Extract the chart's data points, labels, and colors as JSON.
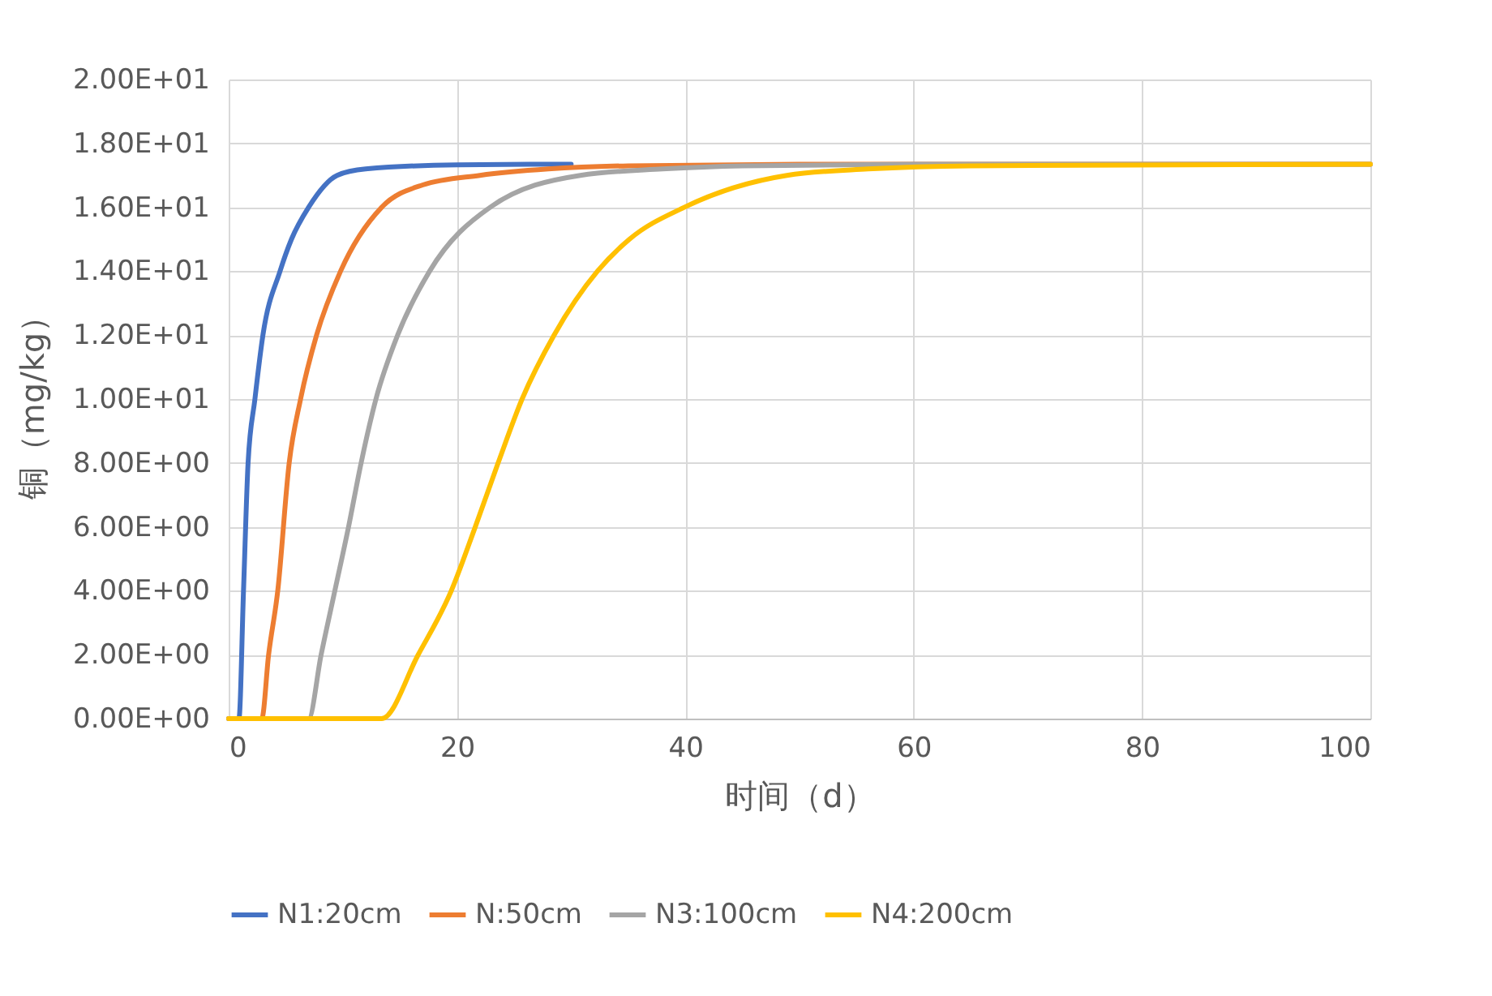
{
  "chart_data": {
    "type": "line",
    "xlabel": "时间（d）",
    "ylabel": "铜（mg/kg）",
    "xlim": [
      0,
      100
    ],
    "xticks": [
      0,
      20,
      40,
      60,
      80,
      100
    ],
    "ylim": [
      0,
      20
    ],
    "yticks": [
      {
        "value": 0,
        "label": "0.00E+00"
      },
      {
        "value": 2,
        "label": "2.00E+00"
      },
      {
        "value": 4,
        "label": "4.00E+00"
      },
      {
        "value": 6,
        "label": "6.00E+00"
      },
      {
        "value": 8,
        "label": "8.00E+00"
      },
      {
        "value": 10,
        "label": "1.00E+01"
      },
      {
        "value": 12,
        "label": "1.20E+01"
      },
      {
        "value": 14,
        "label": "1.40E+01"
      },
      {
        "value": 16,
        "label": "1.60E+01"
      },
      {
        "value": 18,
        "label": "1.80E+01"
      },
      {
        "value": 20,
        "label": "2.00E+01"
      }
    ],
    "grid": true,
    "legend": "bottom",
    "line_style": "solid",
    "series": [
      {
        "name": "N1:20cm",
        "color": "#4472c4",
        "x": [
          0,
          0.9,
          1.3,
          1.7,
          2.3,
          3,
          4.5,
          5.5,
          7,
          9.5,
          12,
          20,
          30
        ],
        "values": [
          0,
          0,
          4,
          8,
          10,
          12,
          14,
          15,
          16,
          17,
          17.2,
          17.33,
          17.35
        ]
      },
      {
        "name": "N:50cm",
        "color": "#ed7d31",
        "x": [
          0,
          2.9,
          3.5,
          4.3,
          5.3,
          6.3,
          7.7,
          9.8,
          13.4,
          17,
          22,
          28,
          35,
          50,
          100
        ],
        "values": [
          0,
          0,
          2,
          4,
          8,
          10,
          12,
          14,
          16,
          16.7,
          17,
          17.2,
          17.3,
          17.35,
          17.35
        ]
      },
      {
        "name": "N3:100cm",
        "color": "#a5a5a5",
        "x": [
          0,
          7,
          8.1,
          9.3,
          10.5,
          11.6,
          12.9,
          14.8,
          17.6,
          22.9,
          30.8,
          38,
          45,
          60,
          100
        ],
        "values": [
          0,
          0,
          2,
          4,
          6,
          8,
          10,
          12,
          14,
          16,
          17,
          17.2,
          17.3,
          17.35,
          17.35
        ]
      },
      {
        "name": "N4:200cm",
        "color": "#ffc000",
        "x": [
          0,
          13.4,
          16.6,
          19.5,
          21.6,
          23.6,
          25.7,
          28.5,
          32.3,
          35.1,
          39.9,
          48.9,
          56,
          65,
          100
        ],
        "values": [
          0,
          0,
          2,
          4,
          6,
          8,
          10,
          12,
          14,
          15,
          16,
          17,
          17.2,
          17.3,
          17.35
        ]
      }
    ]
  }
}
